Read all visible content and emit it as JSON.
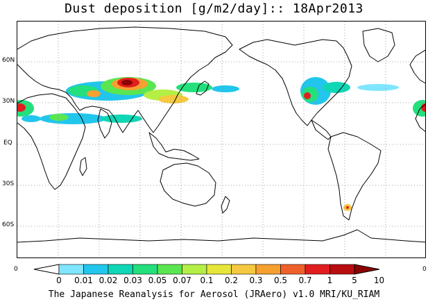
{
  "title": "Dust deposition [g/m2/day]:: 18Apr2013",
  "lat_labels": [
    "60N",
    "30N",
    "EQ",
    "30S",
    "60S"
  ],
  "edge_labels": {
    "left": "0",
    "right": "0"
  },
  "legend": {
    "labels": [
      "0",
      "0.01",
      "0.02",
      "0.03",
      "0.05",
      "0.07",
      "0.1",
      "0.2",
      "0.3",
      "0.5",
      "0.7",
      "1",
      "5",
      "10"
    ],
    "colors": [
      "#ffffff",
      "#80e6ff",
      "#22c6ec",
      "#0fd6b4",
      "#23e07c",
      "#5ae650",
      "#b4ef46",
      "#e6e63a",
      "#f4c840",
      "#f6a030",
      "#f0602a",
      "#e21e20",
      "#b80c10",
      "#8c0202"
    ]
  },
  "credit": "The Japanese Reanalysis for Aerosol (JRAero) v1.0 MRI/KU_RIAM"
}
